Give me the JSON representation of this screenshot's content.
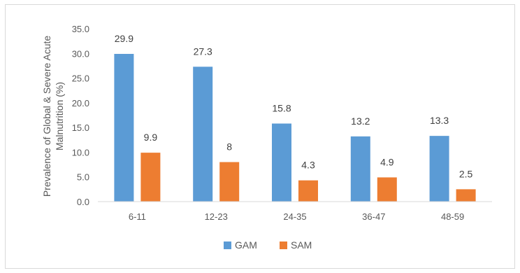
{
  "chart_data": {
    "type": "bar",
    "categories": [
      "6-11",
      "12-23",
      "24-35",
      "36-47",
      "48-59"
    ],
    "series": [
      {
        "name": "GAM",
        "values": [
          29.9,
          27.3,
          15.8,
          13.2,
          13.3
        ],
        "labels": [
          "29.9",
          "27.3",
          "15.8",
          "13.2",
          "13.3"
        ],
        "color": "#5b9bd5"
      },
      {
        "name": "SAM",
        "values": [
          9.9,
          8,
          4.3,
          4.9,
          2.5
        ],
        "labels": [
          "9.9",
          "8",
          "4.3",
          "4.9",
          "2.5"
        ],
        "color": "#ed7d31"
      }
    ],
    "ylabel_lines": [
      "Prevalence of Global & Severe Acute",
      "Malnutrition (%)"
    ],
    "ylim": [
      0,
      35
    ],
    "yticks": [
      "0.0",
      "5.0",
      "10.0",
      "15.0",
      "20.0",
      "25.0",
      "30.0",
      "35.0"
    ],
    "grid": false,
    "legend_position": "bottom"
  }
}
